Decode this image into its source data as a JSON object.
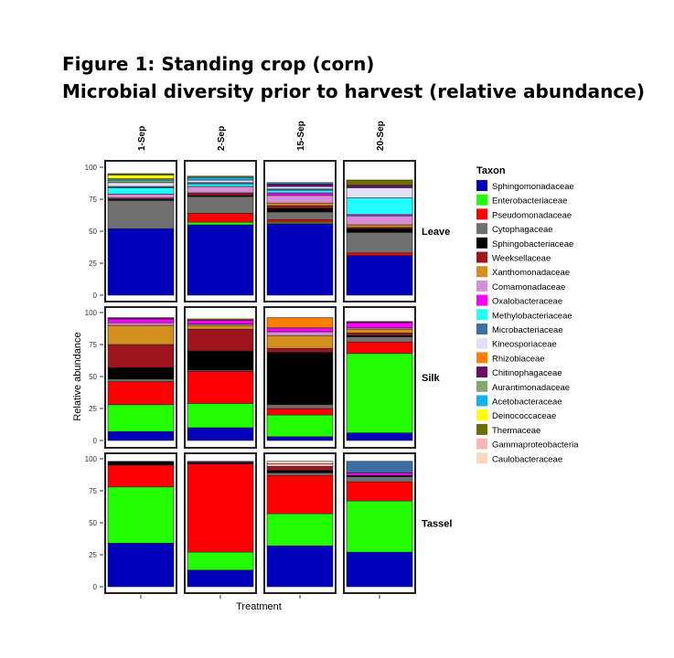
{
  "title_line1": "Figure 1: Standing crop (corn)",
  "title_line2": "Microbial diversity prior to harvest (relative abundance)",
  "chart_data": {
    "type": "bar",
    "stacked": true,
    "xlabel": "Treatment",
    "ylabel": "Relative abundance",
    "ylim": [
      0,
      100
    ],
    "yticks": [
      0,
      25,
      50,
      75,
      100
    ],
    "columns": [
      "1-Sep",
      "2-Sep",
      "15-Sep",
      "20-Sep"
    ],
    "rows": [
      "Leave",
      "Silk",
      "Tassel"
    ],
    "legend": {
      "title": "Taxon",
      "placement": "right"
    },
    "taxa": [
      {
        "name": "Sphingomonadaceae",
        "color": "#0000BB"
      },
      {
        "name": "Enterobacteriaceae",
        "color": "#22FF00"
      },
      {
        "name": "Pseudomonadaceae",
        "color": "#FF0000"
      },
      {
        "name": "Cytophagaceae",
        "color": "#707070"
      },
      {
        "name": "Sphingobacteriaceae",
        "color": "#000000"
      },
      {
        "name": "Weeksellaceae",
        "color": "#A0141E"
      },
      {
        "name": "Xanthomonadaceae",
        "color": "#D4901E"
      },
      {
        "name": "Comamonadaceae",
        "color": "#D68ED6"
      },
      {
        "name": "Oxalobacteraceae",
        "color": "#FF00FF"
      },
      {
        "name": "Methylobacteriaceae",
        "color": "#22FFFF"
      },
      {
        "name": "Microbacteriaceae",
        "color": "#3A6EA5"
      },
      {
        "name": "Kineosporiaceae",
        "color": "#E0E0F8"
      },
      {
        "name": "Rhizobiaceae",
        "color": "#FF7F00"
      },
      {
        "name": "Chitinophagaceae",
        "color": "#6A0A6A"
      },
      {
        "name": "Aurantimonadaceae",
        "color": "#80A870"
      },
      {
        "name": "Acetobacteraceae",
        "color": "#18B0F0"
      },
      {
        "name": "Deinococcaceae",
        "color": "#FFFF00"
      },
      {
        "name": "Thermaceae",
        "color": "#6E6E00"
      },
      {
        "name": "Gammaproteobacteria",
        "color": "#F8B8B8"
      },
      {
        "name": "Caulobacteraceae",
        "color": "#F8D8C0"
      }
    ],
    "values": {
      "Leave": [
        [
          52,
          0,
          0,
          22,
          1,
          1,
          0,
          3,
          0,
          5,
          1,
          3,
          0,
          0,
          2,
          1,
          3,
          1,
          0,
          0
        ],
        [
          55,
          2,
          7,
          13,
          1,
          2,
          0,
          5,
          0,
          2,
          1,
          2,
          0,
          0,
          0,
          2,
          0,
          1,
          0,
          0
        ],
        [
          56,
          1,
          2,
          6,
          3,
          2,
          2,
          6,
          2,
          2,
          1,
          2,
          0,
          2,
          0,
          1,
          0,
          0,
          0,
          0
        ],
        [
          31,
          0,
          2,
          16,
          3,
          1,
          2,
          7,
          1,
          13,
          0,
          8,
          0,
          2,
          0,
          0,
          0,
          4,
          0,
          0
        ]
      ],
      "Silk": [
        [
          7,
          21,
          18,
          2,
          9,
          18,
          15,
          2,
          3,
          0,
          0,
          0,
          0,
          1,
          0,
          0,
          0,
          0,
          0,
          0
        ],
        [
          10,
          19,
          25,
          1,
          15,
          17,
          3,
          1,
          3,
          0,
          0,
          0,
          0,
          0,
          0,
          0,
          0,
          1,
          0,
          0
        ],
        [
          3,
          17,
          5,
          3,
          41,
          3,
          10,
          3,
          3,
          0,
          0,
          0,
          8,
          0,
          0,
          0,
          0,
          0,
          0,
          0
        ],
        [
          6,
          62,
          9,
          4,
          1,
          2,
          3,
          1,
          4,
          0,
          0,
          0,
          0,
          1,
          0,
          0,
          0,
          0,
          0,
          0
        ]
      ],
      "Tassel": [
        [
          34,
          44,
          17,
          0,
          3,
          0,
          0,
          0,
          0,
          0,
          0,
          0,
          0,
          0,
          0,
          0,
          0,
          0,
          0,
          0
        ],
        [
          13,
          14,
          69,
          0,
          1,
          0,
          0,
          0,
          0,
          0,
          0,
          0,
          0,
          1,
          0,
          0,
          0,
          0,
          0,
          0
        ],
        [
          32,
          25,
          30,
          2,
          2,
          3,
          0,
          0,
          0,
          0,
          0,
          0,
          0,
          0,
          0,
          0,
          0,
          0,
          2,
          2
        ],
        [
          27,
          40,
          15,
          4,
          1,
          0,
          0,
          0,
          2,
          0,
          9,
          0,
          0,
          0,
          0,
          0,
          0,
          0,
          0,
          0
        ]
      ]
    }
  }
}
